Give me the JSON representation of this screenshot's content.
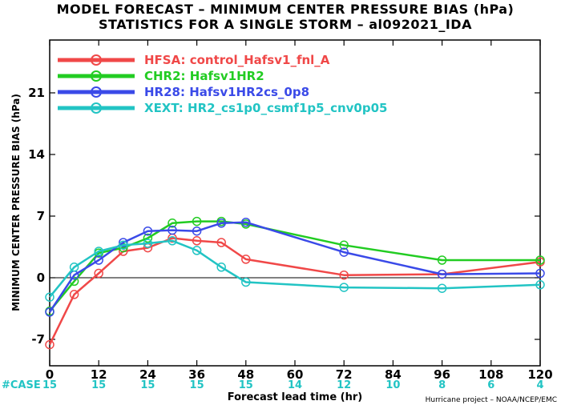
{
  "chart_data": {
    "type": "line",
    "title": "MODEL FORECAST – MINIMUM CENTER PRESSURE BIAS (hPa)",
    "subtitle": "STATISTICS FOR A SINGLE STORM – al092021_IDA",
    "xlabel": "Forecast lead time (hr)",
    "ylabel": "MINIMUM CENTER PRESSURE BIAS (hPa)",
    "xlim": [
      0,
      120
    ],
    "ylim": [
      -10,
      27
    ],
    "x_ticks": [
      0,
      12,
      24,
      36,
      48,
      60,
      72,
      84,
      96,
      108,
      120
    ],
    "y_ticks": [
      -7,
      0,
      7,
      14,
      21
    ],
    "zero_line": true,
    "legend_position": "top-left",
    "series": [
      {
        "name": "HFSA: control_Hafsv1_fnl_A",
        "color": "#f04848",
        "x": [
          0,
          6,
          12,
          18,
          24,
          30,
          36,
          42,
          48,
          72,
          96,
          120
        ],
        "y": [
          -7.6,
          -1.9,
          0.5,
          3.0,
          3.4,
          4.5,
          4.2,
          4.0,
          2.1,
          0.3,
          0.4,
          1.8
        ]
      },
      {
        "name": "CHR2: Hafsv1HR2",
        "color": "#22cc22",
        "x": [
          0,
          6,
          12,
          18,
          24,
          30,
          36,
          42,
          48,
          72,
          96,
          120
        ],
        "y": [
          -3.8,
          -0.4,
          2.8,
          3.4,
          4.5,
          6.2,
          6.4,
          6.4,
          6.1,
          3.7,
          2.0,
          2.0
        ]
      },
      {
        "name": "HR28: Hafsv1HR2cs_0p8",
        "color": "#3a4ae8",
        "x": [
          0,
          6,
          12,
          18,
          24,
          30,
          36,
          42,
          48,
          72,
          96,
          120
        ],
        "y": [
          -3.9,
          0.3,
          2.0,
          4.0,
          5.3,
          5.4,
          5.3,
          6.2,
          6.3,
          2.9,
          0.4,
          0.5
        ]
      },
      {
        "name": "XEXT: HR2_cs1p0_csmf1p5_cnv0p05",
        "color": "#22c4c4",
        "x": [
          0,
          6,
          12,
          18,
          24,
          30,
          36,
          42,
          48,
          72,
          96,
          120
        ],
        "y": [
          -2.2,
          1.2,
          3.0,
          3.7,
          3.9,
          4.2,
          3.1,
          1.2,
          -0.5,
          -1.1,
          -1.2,
          -0.8
        ]
      }
    ],
    "case_label": "#CASE",
    "case_x": [
      0,
      12,
      24,
      36,
      48,
      60,
      72,
      84,
      96,
      108,
      120
    ],
    "case_counts": [
      "15",
      "15",
      "15",
      "15",
      "15",
      "14",
      "12",
      "10",
      "8",
      "6",
      "4"
    ],
    "case_color": "#22c4c4",
    "credit": "Hurricane project – NOAA/NCEP/EMC"
  }
}
